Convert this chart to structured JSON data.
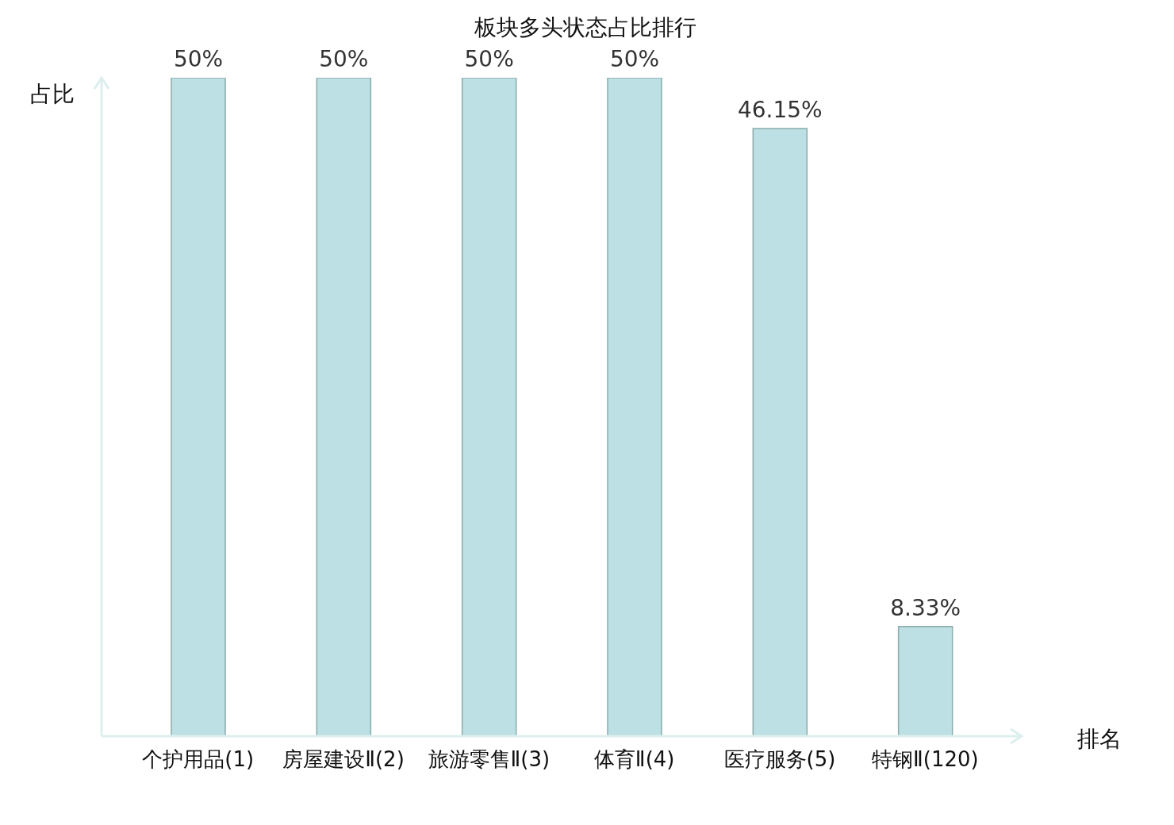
{
  "chart_data": {
    "type": "bar",
    "title": "板块多头状态占比排行",
    "xlabel": "排名",
    "ylabel": "占比",
    "categories": [
      "个护用品(1)",
      "房屋建设Ⅱ(2)",
      "旅游零售Ⅱ(3)",
      "体育Ⅱ(4)",
      "医疗服务(5)",
      "特钢Ⅱ(120)"
    ],
    "values": [
      50,
      50,
      50,
      50,
      46.15,
      8.33
    ],
    "value_labels": [
      "50%",
      "50%",
      "50%",
      "50%",
      "46.15%",
      "8.33%"
    ],
    "color": "#bce0e3",
    "ylim": [
      0,
      50
    ]
  }
}
